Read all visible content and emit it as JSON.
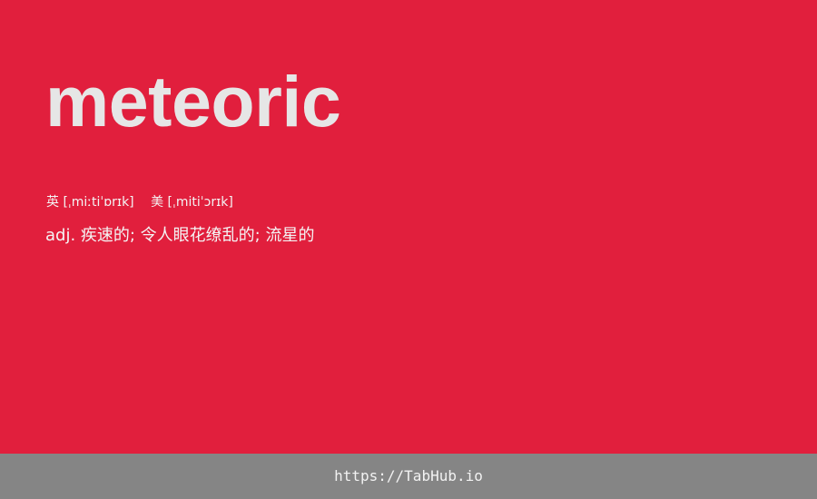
{
  "card": {
    "word": "meteoric",
    "phonetic_uk": "英 [ˌmiːtiˈɒrɪk]",
    "phonetic_us": "美 [ˌmitiˈɔrɪk]",
    "definition": "adj. 疾速的; 令人眼花缭乱的; 流星的"
  },
  "footer": {
    "link": "https://TabHub.io"
  },
  "colors": {
    "background": "#e11f3d",
    "word": "#e6e6e6",
    "footer_background": "#858585"
  }
}
